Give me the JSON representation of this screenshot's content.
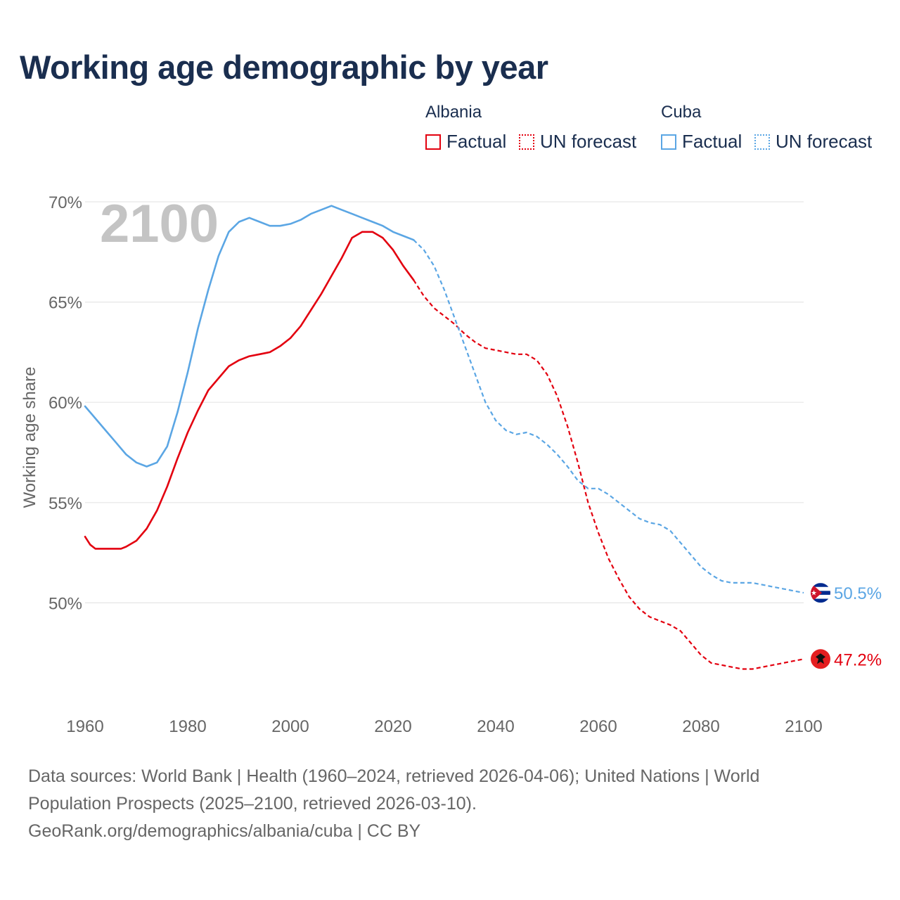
{
  "title": "Working age demographic by year",
  "legend": {
    "groups": [
      {
        "name": "Albania",
        "color": "#e3000f",
        "factual_label": "Factual",
        "forecast_label": "UN forecast"
      },
      {
        "name": "Cuba",
        "color": "#5ba6e4",
        "factual_label": "Factual",
        "forecast_label": "UN forecast"
      }
    ]
  },
  "year_watermark": "2100",
  "sources": {
    "line1": "Data sources: World Bank | Health (1960–2024, retrieved 2026-04-06); United Nations | World",
    "line2": "Population Prospects (2025–2100, retrieved 2026-03-10).",
    "line3": "GeoRank.org/demographics/albania/cuba | CC BY"
  },
  "chart_data": {
    "type": "line",
    "title": "Working age demographic by year",
    "xlabel": "",
    "ylabel": "Working age share",
    "xlim": [
      1960,
      2100
    ],
    "ylim": [
      45,
      70
    ],
    "x_ticks": [
      1960,
      1980,
      2000,
      2020,
      2040,
      2060,
      2080,
      2100
    ],
    "x_tick_labels": [
      "1960",
      "1980",
      "2000",
      "2020",
      "2040",
      "2060",
      "2080",
      "2100"
    ],
    "y_ticks": [
      50,
      55,
      60,
      65,
      70
    ],
    "y_tick_labels": [
      "50%",
      "55%",
      "60%",
      "65%",
      "70%"
    ],
    "grid": true,
    "forecast_start": 2024,
    "series": [
      {
        "name": "Albania",
        "color": "#e3000f",
        "end_label": "47.2%",
        "flag": "albania",
        "points": [
          [
            1960,
            53.3
          ],
          [
            1961,
            52.9
          ],
          [
            1962,
            52.7
          ],
          [
            1964,
            52.7
          ],
          [
            1967,
            52.7
          ],
          [
            1968,
            52.8
          ],
          [
            1970,
            53.1
          ],
          [
            1972,
            53.7
          ],
          [
            1974,
            54.6
          ],
          [
            1976,
            55.8
          ],
          [
            1978,
            57.2
          ],
          [
            1980,
            58.5
          ],
          [
            1982,
            59.6
          ],
          [
            1984,
            60.6
          ],
          [
            1986,
            61.2
          ],
          [
            1988,
            61.8
          ],
          [
            1990,
            62.1
          ],
          [
            1992,
            62.3
          ],
          [
            1994,
            62.4
          ],
          [
            1996,
            62.5
          ],
          [
            1998,
            62.8
          ],
          [
            2000,
            63.2
          ],
          [
            2002,
            63.8
          ],
          [
            2004,
            64.6
          ],
          [
            2006,
            65.4
          ],
          [
            2008,
            66.3
          ],
          [
            2010,
            67.2
          ],
          [
            2012,
            68.2
          ],
          [
            2014,
            68.5
          ],
          [
            2016,
            68.5
          ],
          [
            2018,
            68.2
          ],
          [
            2020,
            67.6
          ],
          [
            2022,
            66.8
          ],
          [
            2024,
            66.1
          ],
          [
            2026,
            65.3
          ],
          [
            2028,
            64.7
          ],
          [
            2030,
            64.3
          ],
          [
            2032,
            63.9
          ],
          [
            2034,
            63.4
          ],
          [
            2036,
            63.0
          ],
          [
            2038,
            62.7
          ],
          [
            2040,
            62.6
          ],
          [
            2042,
            62.5
          ],
          [
            2044,
            62.4
          ],
          [
            2046,
            62.4
          ],
          [
            2048,
            62.1
          ],
          [
            2050,
            61.4
          ],
          [
            2052,
            60.3
          ],
          [
            2054,
            58.8
          ],
          [
            2056,
            57.0
          ],
          [
            2058,
            55.0
          ],
          [
            2060,
            53.5
          ],
          [
            2062,
            52.2
          ],
          [
            2064,
            51.2
          ],
          [
            2066,
            50.3
          ],
          [
            2068,
            49.7
          ],
          [
            2070,
            49.3
          ],
          [
            2072,
            49.1
          ],
          [
            2074,
            48.9
          ],
          [
            2076,
            48.6
          ],
          [
            2078,
            48.0
          ],
          [
            2080,
            47.4
          ],
          [
            2082,
            47.0
          ],
          [
            2084,
            46.9
          ],
          [
            2086,
            46.8
          ],
          [
            2088,
            46.7
          ],
          [
            2090,
            46.7
          ],
          [
            2092,
            46.8
          ],
          [
            2094,
            46.9
          ],
          [
            2096,
            47.0
          ],
          [
            2098,
            47.1
          ],
          [
            2100,
            47.2
          ]
        ]
      },
      {
        "name": "Cuba",
        "color": "#5ba6e4",
        "end_label": "50.5%",
        "flag": "cuba",
        "points": [
          [
            1960,
            59.8
          ],
          [
            1962,
            59.2
          ],
          [
            1964,
            58.6
          ],
          [
            1966,
            58.0
          ],
          [
            1968,
            57.4
          ],
          [
            1970,
            57.0
          ],
          [
            1972,
            56.8
          ],
          [
            1974,
            57.0
          ],
          [
            1976,
            57.8
          ],
          [
            1978,
            59.5
          ],
          [
            1980,
            61.5
          ],
          [
            1982,
            63.7
          ],
          [
            1984,
            65.6
          ],
          [
            1986,
            67.3
          ],
          [
            1988,
            68.5
          ],
          [
            1990,
            69.0
          ],
          [
            1992,
            69.2
          ],
          [
            1994,
            69.0
          ],
          [
            1996,
            68.8
          ],
          [
            1998,
            68.8
          ],
          [
            2000,
            68.9
          ],
          [
            2002,
            69.1
          ],
          [
            2004,
            69.4
          ],
          [
            2006,
            69.6
          ],
          [
            2008,
            69.8
          ],
          [
            2010,
            69.6
          ],
          [
            2012,
            69.4
          ],
          [
            2014,
            69.2
          ],
          [
            2016,
            69.0
          ],
          [
            2018,
            68.8
          ],
          [
            2020,
            68.5
          ],
          [
            2022,
            68.3
          ],
          [
            2024,
            68.1
          ],
          [
            2026,
            67.6
          ],
          [
            2028,
            66.8
          ],
          [
            2030,
            65.6
          ],
          [
            2032,
            64.2
          ],
          [
            2034,
            62.8
          ],
          [
            2036,
            61.4
          ],
          [
            2038,
            60.0
          ],
          [
            2040,
            59.1
          ],
          [
            2042,
            58.6
          ],
          [
            2044,
            58.4
          ],
          [
            2046,
            58.5
          ],
          [
            2048,
            58.3
          ],
          [
            2050,
            57.9
          ],
          [
            2052,
            57.4
          ],
          [
            2054,
            56.8
          ],
          [
            2056,
            56.1
          ],
          [
            2058,
            55.7
          ],
          [
            2060,
            55.7
          ],
          [
            2062,
            55.4
          ],
          [
            2064,
            55.0
          ],
          [
            2066,
            54.6
          ],
          [
            2068,
            54.2
          ],
          [
            2070,
            54.0
          ],
          [
            2072,
            53.9
          ],
          [
            2074,
            53.6
          ],
          [
            2076,
            53.0
          ],
          [
            2078,
            52.4
          ],
          [
            2080,
            51.8
          ],
          [
            2082,
            51.4
          ],
          [
            2084,
            51.1
          ],
          [
            2086,
            51.0
          ],
          [
            2088,
            51.0
          ],
          [
            2090,
            51.0
          ],
          [
            2092,
            50.9
          ],
          [
            2094,
            50.8
          ],
          [
            2096,
            50.7
          ],
          [
            2098,
            50.6
          ],
          [
            2100,
            50.5
          ]
        ]
      }
    ]
  }
}
